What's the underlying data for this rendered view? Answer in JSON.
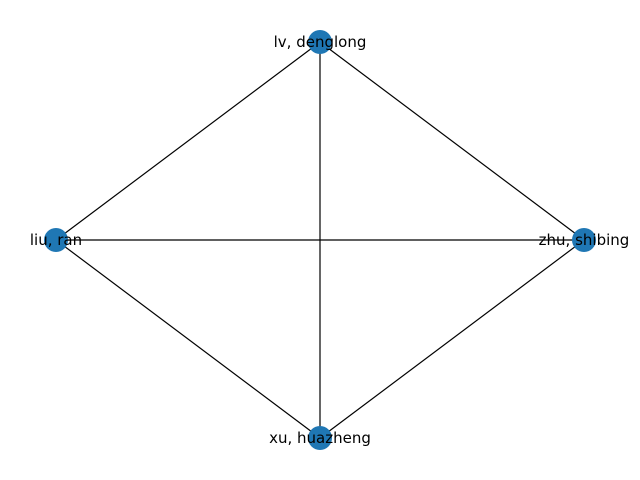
{
  "graph": {
    "node_color": "#1f77b4",
    "edge_color": "#000000",
    "nodes": [
      {
        "id": "lv",
        "label": "lv, denglong"
      },
      {
        "id": "liu",
        "label": "liu, ran"
      },
      {
        "id": "zhu",
        "label": "zhu, shibing"
      },
      {
        "id": "xu",
        "label": "xu, huazheng"
      }
    ],
    "edges": [
      [
        "lv",
        "liu"
      ],
      [
        "lv",
        "zhu"
      ],
      [
        "lv",
        "xu"
      ],
      [
        "liu",
        "zhu"
      ],
      [
        "liu",
        "xu"
      ],
      [
        "zhu",
        "xu"
      ]
    ]
  }
}
